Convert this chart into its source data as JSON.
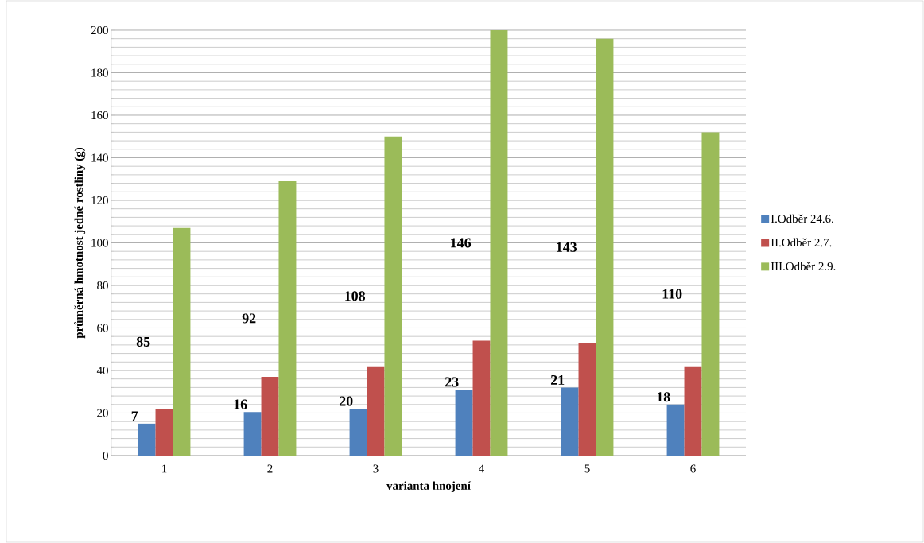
{
  "chart_data": {
    "type": "bar",
    "xlabel": "varianta hnojení",
    "ylabel": "průměrná hmotnost jedné rostliny (g)",
    "categories": [
      "1",
      "2",
      "3",
      "4",
      "5",
      "6"
    ],
    "series": [
      {
        "name": "I.Odběr 24.6.",
        "color": "#4f81bd",
        "values": [
          15,
          20.5,
          22,
          31,
          32,
          24
        ]
      },
      {
        "name": "II.Odběr 2.7.",
        "color": "#c0504d",
        "values": [
          22,
          37,
          42,
          54,
          53,
          42
        ]
      },
      {
        "name": "III.Odběr 2.9.",
        "color": "#9bbb59",
        "values": [
          107,
          129,
          150,
          200,
          196,
          152
        ]
      }
    ],
    "annotations": [
      "7",
      "85",
      "16",
      "92",
      "20",
      "108",
      "23",
      "146",
      "21",
      "143",
      "18",
      "110"
    ],
    "ylim": [
      0,
      200
    ],
    "yticks": [
      0,
      20,
      40,
      60,
      80,
      100,
      120,
      140,
      160,
      180,
      200
    ],
    "grid": "y",
    "legend": "right"
  }
}
